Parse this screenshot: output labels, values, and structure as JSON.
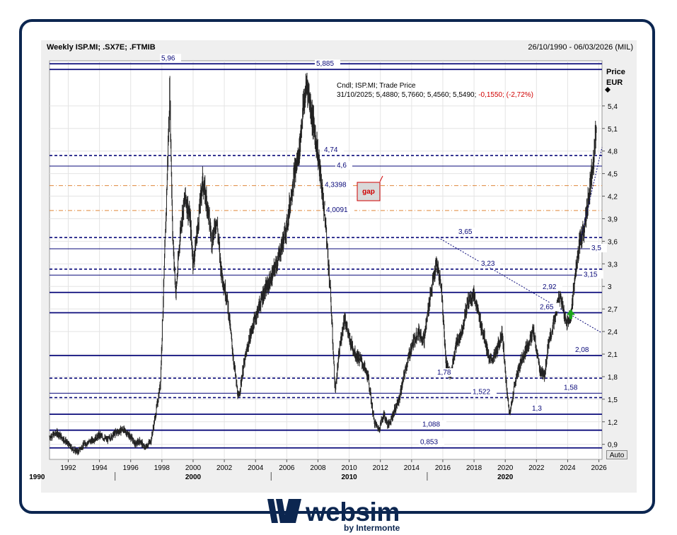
{
  "header": {
    "title": "Weekly ISP.MI; .SX7E; .FTMIB",
    "range": "26/10/1990 - 06/03/2026 (MIL)"
  },
  "legend": {
    "line1": "Cndl; ISP.MI; Trade Price",
    "line2_prefix": "31/10/2025; 5,4880; 5,7660; 5,4560; 5,5490;",
    "line2_change": "-0,1550; (-2,72%)"
  },
  "auto_label": "Auto",
  "logo": {
    "word": "websim",
    "sub": "by Intermonte"
  },
  "colors": {
    "navy": "#0a0a7a",
    "orange": "#e0883a",
    "frame": "#0c2650",
    "candle": "#222222",
    "arrow": "#1aa51a",
    "gap_fill": "#d9d9d9",
    "gap_text": "#d00000"
  },
  "chart_data": {
    "type": "candlestick",
    "y_axis_title": [
      "Price",
      "EUR"
    ],
    "y_ticks": [
      "5,4",
      "5,1",
      "4,8",
      "4,5",
      "4,2",
      "3,9",
      "3,6",
      "3,3",
      "3",
      "2,7",
      "2,4",
      "2,1",
      "1,8",
      "1,5",
      "1,2",
      "0,9"
    ],
    "ylim": [
      0.7,
      6.0
    ],
    "x_ticks": [
      "1992",
      "1994",
      "1996",
      "1998",
      "2000",
      "2002",
      "2004",
      "2006",
      "2008",
      "2010",
      "2012",
      "2014",
      "2016",
      "2018",
      "2020",
      "2022",
      "2024",
      "2026"
    ],
    "x_decades": [
      "1990",
      "2000",
      "2010",
      "2020"
    ],
    "xlim": [
      1990.8,
      2026.2
    ],
    "levels": [
      {
        "value": 5.96,
        "label": "5,96",
        "style": "solid"
      },
      {
        "value": 5.885,
        "label": "5,885",
        "style": "solid"
      },
      {
        "value": 4.74,
        "label": "4,74",
        "style": "dashed"
      },
      {
        "value": 4.6,
        "label": "4,6",
        "style": "solid"
      },
      {
        "value": 4.3398,
        "label": "4,3398",
        "style": "dashdot-orange"
      },
      {
        "value": 4.0091,
        "label": "4,0091",
        "style": "dashdot-orange"
      },
      {
        "value": 3.65,
        "label": "3,65",
        "style": "dashed"
      },
      {
        "value": 3.5,
        "label": "3,5",
        "style": "solid"
      },
      {
        "value": 3.23,
        "label": "3,23",
        "style": "dashed"
      },
      {
        "value": 3.15,
        "label": "3,15",
        "style": "solid"
      },
      {
        "value": 2.92,
        "label": "2,92",
        "style": "solid"
      },
      {
        "value": 2.65,
        "label": "2,65",
        "style": "solid"
      },
      {
        "value": 2.08,
        "label": "2,08",
        "style": "solid"
      },
      {
        "value": 1.78,
        "label": "1,78",
        "style": "dashed"
      },
      {
        "value": 1.58,
        "label": "1,58",
        "style": "solid"
      },
      {
        "value": 1.522,
        "label": "1,522",
        "style": "dashed"
      },
      {
        "value": 1.3,
        "label": "1,3",
        "style": "solid"
      },
      {
        "value": 1.088,
        "label": "1,088",
        "style": "solid"
      },
      {
        "value": 0.853,
        "label": "0,853",
        "style": "solid"
      }
    ],
    "trendline": {
      "x": [
        2015.7,
        2026.2
      ],
      "y": [
        3.65,
        2.38
      ]
    },
    "support_line": {
      "x": [
        2024.8,
        2026.2
      ],
      "y": [
        3.6,
        4.85
      ]
    },
    "gap_annotation": {
      "label": "gap",
      "x": 2012.0,
      "y": 4.2
    },
    "series": [
      {
        "name": "ISP.MI",
        "x": [
          1990.8,
          1991.3,
          1991.8,
          1992.2,
          1992.6,
          1993.0,
          1993.5,
          1994.0,
          1994.5,
          1995.0,
          1995.5,
          1996.0,
          1996.3,
          1996.6,
          1996.9,
          1997.3,
          1997.6,
          1997.9,
          1998.1,
          1998.3,
          1998.5,
          1998.7,
          1998.9,
          1999.2,
          1999.5,
          1999.8,
          2000.0,
          2000.3,
          2000.6,
          2000.9,
          2001.2,
          2001.5,
          2001.8,
          2002.2,
          2002.6,
          2002.9,
          2003.2,
          2003.6,
          2004.0,
          2004.5,
          2005.0,
          2005.5,
          2006.0,
          2006.4,
          2006.8,
          2007.0,
          2007.3,
          2007.6,
          2007.9,
          2008.2,
          2008.5,
          2008.8,
          2009.1,
          2009.4,
          2009.7,
          2010.0,
          2010.4,
          2010.8,
          2011.2,
          2011.6,
          2011.9,
          2012.2,
          2012.5,
          2012.8,
          2013.2,
          2013.6,
          2014.0,
          2014.4,
          2014.8,
          2015.2,
          2015.6,
          2015.9,
          2016.2,
          2016.5,
          2016.8,
          2017.2,
          2017.6,
          2018.0,
          2018.3,
          2018.7,
          2019.0,
          2019.4,
          2019.8,
          2020.1,
          2020.3,
          2020.6,
          2021.0,
          2021.4,
          2021.8,
          2022.2,
          2022.5,
          2022.8,
          2023.1,
          2023.5,
          2023.9,
          2024.2,
          2024.5,
          2024.8,
          2025.1,
          2025.4,
          2025.7,
          2025.9,
          2026.1
        ],
        "y": [
          1.0,
          1.05,
          0.95,
          0.85,
          0.8,
          0.9,
          0.95,
          1.02,
          0.96,
          1.05,
          1.1,
          1.0,
          0.9,
          0.95,
          0.85,
          0.95,
          1.3,
          1.7,
          2.9,
          4.2,
          5.6,
          3.6,
          2.9,
          3.8,
          4.2,
          3.9,
          3.3,
          3.8,
          4.4,
          4.1,
          3.6,
          3.9,
          3.2,
          2.8,
          2.0,
          1.5,
          1.9,
          2.3,
          2.6,
          2.9,
          3.1,
          3.4,
          3.8,
          4.4,
          4.8,
          5.3,
          5.7,
          5.3,
          4.9,
          4.4,
          3.8,
          2.9,
          1.6,
          2.2,
          2.6,
          2.3,
          2.1,
          2.0,
          1.8,
          1.2,
          1.1,
          1.3,
          1.15,
          1.3,
          1.5,
          1.9,
          2.2,
          2.4,
          2.3,
          2.9,
          3.3,
          3.0,
          2.0,
          1.8,
          2.2,
          2.4,
          2.8,
          2.9,
          2.6,
          2.3,
          2.0,
          2.1,
          2.4,
          1.6,
          1.3,
          1.7,
          2.0,
          2.2,
          2.4,
          1.9,
          1.8,
          2.3,
          2.5,
          2.9,
          2.5,
          2.6,
          3.2,
          3.6,
          3.8,
          4.3,
          4.8,
          5.3,
          5.55
        ]
      }
    ]
  }
}
